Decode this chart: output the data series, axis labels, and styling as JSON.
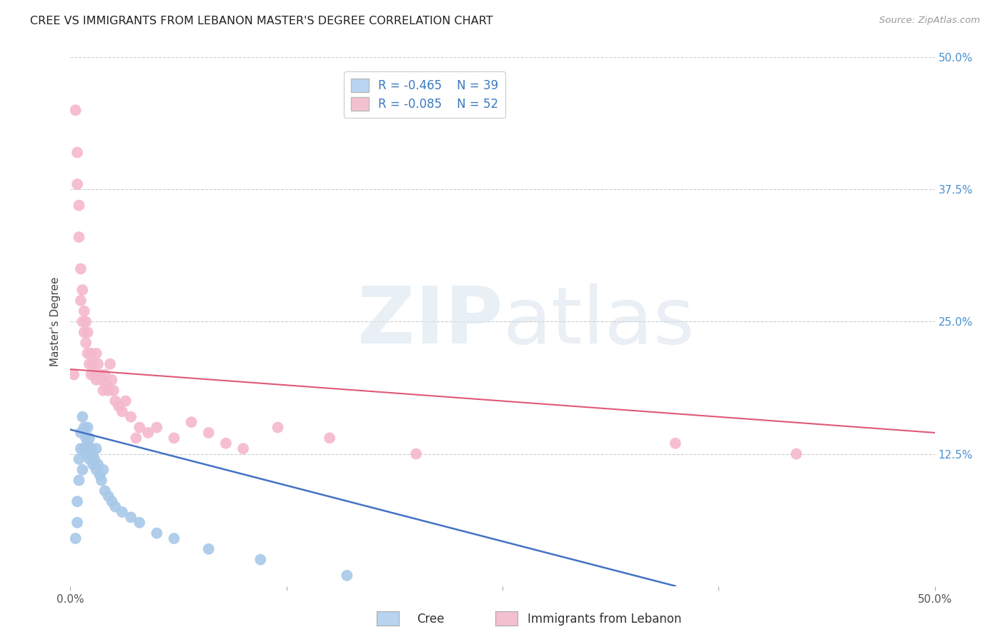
{
  "title": "CREE VS IMMIGRANTS FROM LEBANON MASTER'S DEGREE CORRELATION CHART",
  "source": "Source: ZipAtlas.com",
  "ylabel": "Master's Degree",
  "xlim": [
    0.0,
    0.5
  ],
  "ylim": [
    0.0,
    0.5
  ],
  "xtick_values": [
    0.0,
    0.125,
    0.25,
    0.375,
    0.5
  ],
  "ytick_values": [
    0.125,
    0.25,
    0.375,
    0.5
  ],
  "cree_R": -0.465,
  "cree_N": 39,
  "lebanon_R": -0.085,
  "lebanon_N": 52,
  "cree_color": "#a8c8e8",
  "cree_line_color": "#4472c4",
  "lebanon_color": "#f4b8cc",
  "lebanon_line_color": "#e05878",
  "background_color": "#ffffff",
  "grid_color": "#cccccc",
  "legend_box_color_cree": "#b8d4f0",
  "legend_box_color_lebanon": "#f4c0d0",
  "right_tick_color": "#4a90d0",
  "cree_x": [
    0.003,
    0.004,
    0.004,
    0.005,
    0.005,
    0.006,
    0.006,
    0.007,
    0.007,
    0.008,
    0.008,
    0.009,
    0.009,
    0.01,
    0.01,
    0.011,
    0.011,
    0.012,
    0.013,
    0.013,
    0.014,
    0.015,
    0.015,
    0.016,
    0.017,
    0.018,
    0.019,
    0.02,
    0.022,
    0.024,
    0.026,
    0.03,
    0.035,
    0.04,
    0.05,
    0.06,
    0.08,
    0.11,
    0.16
  ],
  "cree_y": [
    0.045,
    0.06,
    0.08,
    0.1,
    0.12,
    0.13,
    0.145,
    0.11,
    0.16,
    0.13,
    0.15,
    0.125,
    0.14,
    0.135,
    0.15,
    0.12,
    0.14,
    0.13,
    0.115,
    0.125,
    0.12,
    0.11,
    0.13,
    0.115,
    0.105,
    0.1,
    0.11,
    0.09,
    0.085,
    0.08,
    0.075,
    0.07,
    0.065,
    0.06,
    0.05,
    0.045,
    0.035,
    0.025,
    0.01
  ],
  "lebanon_x": [
    0.002,
    0.003,
    0.004,
    0.004,
    0.005,
    0.005,
    0.006,
    0.006,
    0.007,
    0.007,
    0.008,
    0.008,
    0.009,
    0.009,
    0.01,
    0.01,
    0.011,
    0.012,
    0.012,
    0.013,
    0.014,
    0.015,
    0.015,
    0.016,
    0.017,
    0.018,
    0.019,
    0.02,
    0.021,
    0.022,
    0.023,
    0.024,
    0.025,
    0.026,
    0.028,
    0.03,
    0.032,
    0.035,
    0.038,
    0.04,
    0.045,
    0.05,
    0.06,
    0.07,
    0.08,
    0.09,
    0.1,
    0.12,
    0.15,
    0.2,
    0.35,
    0.42
  ],
  "lebanon_y": [
    0.2,
    0.45,
    0.41,
    0.38,
    0.36,
    0.33,
    0.3,
    0.27,
    0.28,
    0.25,
    0.24,
    0.26,
    0.23,
    0.25,
    0.22,
    0.24,
    0.21,
    0.22,
    0.2,
    0.21,
    0.2,
    0.22,
    0.195,
    0.21,
    0.2,
    0.195,
    0.185,
    0.2,
    0.19,
    0.185,
    0.21,
    0.195,
    0.185,
    0.175,
    0.17,
    0.165,
    0.175,
    0.16,
    0.14,
    0.15,
    0.145,
    0.15,
    0.14,
    0.155,
    0.145,
    0.135,
    0.13,
    0.15,
    0.14,
    0.125,
    0.135,
    0.125
  ],
  "lebanon_line_x0": 0.0,
  "lebanon_line_y0": 0.205,
  "lebanon_line_x1": 0.5,
  "lebanon_line_y1": 0.145,
  "cree_line_x0": 0.0,
  "cree_line_y0": 0.148,
  "cree_line_x1": 0.35,
  "cree_line_y1": 0.0
}
